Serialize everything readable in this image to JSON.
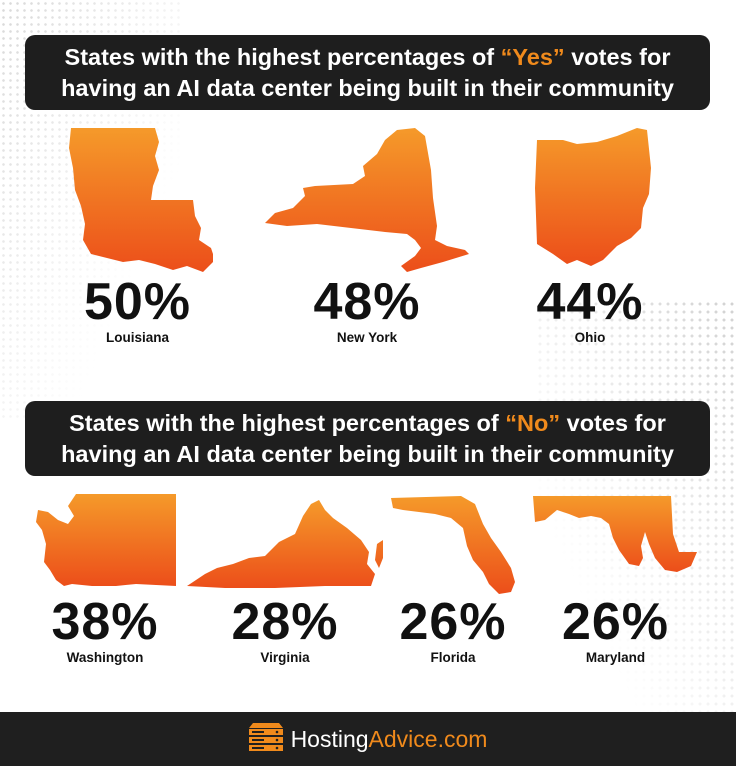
{
  "yes_section": {
    "title_line1_pre": "States with the highest percentages of ",
    "title_highlight": "“Yes”",
    "title_line1_post": " votes for",
    "title_line2": "having an AI data center being built in their community",
    "states": [
      {
        "name": "Louisiana",
        "percent": "50%"
      },
      {
        "name": "New York",
        "percent": "48%"
      },
      {
        "name": "Ohio",
        "percent": "44%"
      }
    ]
  },
  "no_section": {
    "title_line1_pre": "States with the highest percentages of ",
    "title_highlight": "“No”",
    "title_line1_post": " votes for",
    "title_line2": "having an AI data center being built in their community",
    "states": [
      {
        "name": "Washington",
        "percent": "38%"
      },
      {
        "name": "Virginia",
        "percent": "28%"
      },
      {
        "name": "Florida",
        "percent": "26%"
      },
      {
        "name": "Maryland",
        "percent": "26%"
      }
    ]
  },
  "footer": {
    "brand_part1": "Hosting",
    "brand_part2": "Advice.com",
    "logo_icon": "server-stack-icon"
  },
  "colors": {
    "accent": "#f08a1c",
    "gradient_top": "#f59a2a",
    "gradient_bottom": "#ec4e1a",
    "banner_bg": "#1e1e1e",
    "footer_bg": "#1f1f1f"
  }
}
